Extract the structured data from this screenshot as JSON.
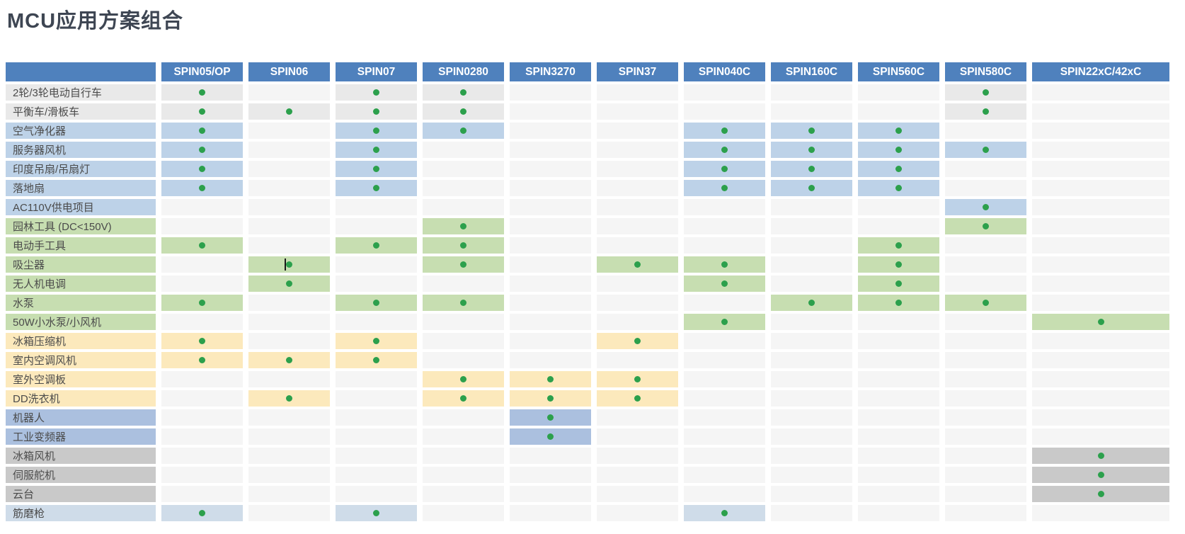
{
  "title": "MCU应用方案组合",
  "colors": {
    "header_bg": "#4f81bd",
    "header_text": "#ffffff",
    "title_text": "#3e4653",
    "label_text": "#4b4b4b",
    "empty_cell": "#f5f5f5",
    "dot": "#2ca04c",
    "row_colors": {
      "gray": "#e9e9e9",
      "blue": "#bdd2e8",
      "green": "#c7deb1",
      "yellow": "#fce9bc",
      "periwinkle": "#abc0df",
      "darkgray": "#c9c9c9",
      "lightblue": "#cfdce9"
    }
  },
  "table": {
    "corner_label": "",
    "columns": [
      "SPIN05/OP",
      "SPIN06",
      "SPIN07",
      "SPIN0280",
      "SPIN3270",
      "SPIN37",
      "SPIN040C",
      "SPIN160C",
      "SPIN560C",
      "SPIN580C",
      "SPIN22xC/42xC"
    ],
    "rows": [
      {
        "label": "2轮/3轮电动自行车",
        "color": "gray",
        "dots": [
          1,
          0,
          1,
          1,
          0,
          0,
          0,
          0,
          0,
          1,
          0
        ]
      },
      {
        "label": "平衡车/滑板车",
        "color": "gray",
        "dots": [
          1,
          1,
          1,
          1,
          0,
          0,
          0,
          0,
          0,
          1,
          0
        ]
      },
      {
        "label": "空气净化器",
        "color": "blue",
        "dots": [
          1,
          0,
          1,
          1,
          0,
          0,
          1,
          1,
          1,
          0,
          0
        ]
      },
      {
        "label": "服务器风机",
        "color": "blue",
        "dots": [
          1,
          0,
          1,
          0,
          0,
          0,
          1,
          1,
          1,
          1,
          0
        ]
      },
      {
        "label": "印度吊扇/吊扇灯",
        "color": "blue",
        "dots": [
          1,
          0,
          1,
          0,
          0,
          0,
          1,
          1,
          1,
          0,
          0
        ]
      },
      {
        "label": "落地扇",
        "color": "blue",
        "dots": [
          1,
          0,
          1,
          0,
          0,
          0,
          1,
          1,
          1,
          0,
          0
        ]
      },
      {
        "label": "AC110V供电项目",
        "color": "blue",
        "dots": [
          0,
          0,
          0,
          0,
          0,
          0,
          0,
          0,
          0,
          1,
          0
        ]
      },
      {
        "label": "园林工具 (DC<150V)",
        "color": "green",
        "dots": [
          0,
          0,
          0,
          1,
          0,
          0,
          0,
          0,
          0,
          1,
          0
        ]
      },
      {
        "label": "电动手工具",
        "color": "green",
        "dots": [
          1,
          0,
          1,
          1,
          0,
          0,
          0,
          0,
          1,
          0,
          0
        ]
      },
      {
        "label": "吸尘器",
        "color": "green",
        "dots": [
          0,
          1,
          0,
          1,
          0,
          1,
          1,
          0,
          1,
          0,
          0
        ]
      },
      {
        "label": "无人机电调",
        "color": "green",
        "dots": [
          0,
          1,
          0,
          0,
          0,
          0,
          1,
          0,
          1,
          0,
          0
        ]
      },
      {
        "label": "水泵",
        "color": "green",
        "dots": [
          1,
          0,
          1,
          1,
          0,
          0,
          0,
          1,
          1,
          1,
          0
        ]
      },
      {
        "label": "50W小水泵/小风机",
        "color": "green",
        "dots": [
          0,
          0,
          0,
          0,
          0,
          0,
          1,
          0,
          0,
          0,
          1
        ]
      },
      {
        "label": "冰箱压缩机",
        "color": "yellow",
        "dots": [
          1,
          0,
          1,
          0,
          0,
          1,
          0,
          0,
          0,
          0,
          0
        ]
      },
      {
        "label": "室内空调风机",
        "color": "yellow",
        "dots": [
          1,
          1,
          1,
          0,
          0,
          0,
          0,
          0,
          0,
          0,
          0
        ]
      },
      {
        "label": "室外空调板",
        "color": "yellow",
        "dots": [
          0,
          0,
          0,
          1,
          1,
          1,
          0,
          0,
          0,
          0,
          0
        ]
      },
      {
        "label": "DD洗衣机",
        "color": "yellow",
        "dots": [
          0,
          1,
          0,
          1,
          1,
          1,
          0,
          0,
          0,
          0,
          0
        ]
      },
      {
        "label": "机器人",
        "color": "periwinkle",
        "dots": [
          0,
          0,
          0,
          0,
          1,
          0,
          0,
          0,
          0,
          0,
          0
        ]
      },
      {
        "label": "工业变频器",
        "color": "periwinkle",
        "dots": [
          0,
          0,
          0,
          0,
          1,
          0,
          0,
          0,
          0,
          0,
          0
        ]
      },
      {
        "label": "冰箱风机",
        "color": "darkgray",
        "dots": [
          0,
          0,
          0,
          0,
          0,
          0,
          0,
          0,
          0,
          0,
          1
        ]
      },
      {
        "label": "伺服舵机",
        "color": "darkgray",
        "dots": [
          0,
          0,
          0,
          0,
          0,
          0,
          0,
          0,
          0,
          0,
          1
        ]
      },
      {
        "label": "云台",
        "color": "darkgray",
        "dots": [
          0,
          0,
          0,
          0,
          0,
          0,
          0,
          0,
          0,
          0,
          1
        ]
      },
      {
        "label": "筋磨枪",
        "color": "lightblue",
        "dots": [
          1,
          0,
          1,
          0,
          0,
          0,
          1,
          0,
          0,
          0,
          0
        ]
      }
    ],
    "text_cursor": {
      "row_index": 9,
      "col_index": 1
    }
  }
}
